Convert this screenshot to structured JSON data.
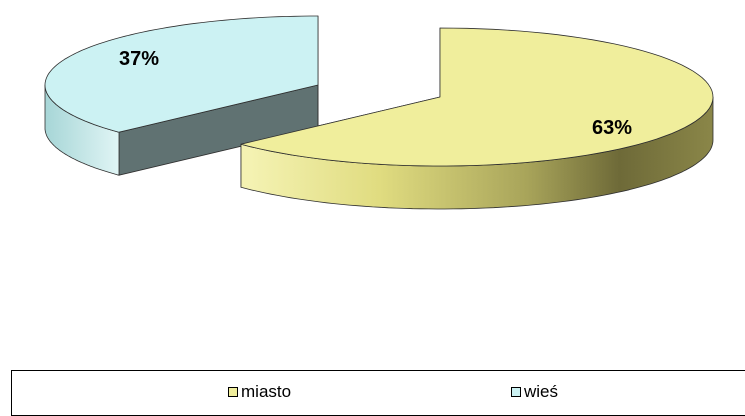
{
  "chart_data": {
    "type": "pie",
    "style": "3d-exploded",
    "title": "",
    "series": [
      {
        "name": "miasto",
        "value": 63,
        "label": "63%",
        "color": "#f0ee9c"
      },
      {
        "name": "wieś",
        "value": 37,
        "label": "37%",
        "color": "#ccf2f3"
      }
    ],
    "legend": {
      "placement": "bottom",
      "items": [
        {
          "label": "miasto",
          "color": "#f0ee9c"
        },
        {
          "label": "wieś",
          "color": "#ccf2f3"
        }
      ]
    }
  }
}
